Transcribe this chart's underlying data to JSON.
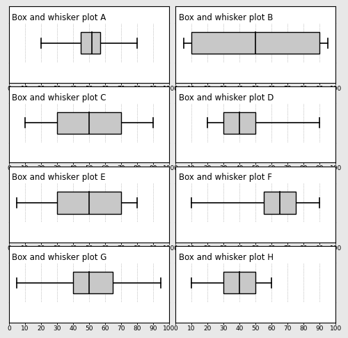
{
  "plots": [
    {
      "title": "Box and whisker plot A",
      "whisker_min": 20,
      "Q1": 45,
      "median": 52,
      "Q3": 57,
      "whisker_max": 80
    },
    {
      "title": "Box and whisker plot B",
      "whisker_min": 5,
      "Q1": 10,
      "median": 50,
      "Q3": 90,
      "whisker_max": 95
    },
    {
      "title": "Box and whisker plot C",
      "whisker_min": 10,
      "Q1": 30,
      "median": 50,
      "Q3": 70,
      "whisker_max": 90
    },
    {
      "title": "Box and whisker plot D",
      "whisker_min": 20,
      "Q1": 30,
      "median": 40,
      "Q3": 50,
      "whisker_max": 90
    },
    {
      "title": "Box and whisker plot E",
      "whisker_min": 5,
      "Q1": 30,
      "median": 50,
      "Q3": 70,
      "whisker_max": 80
    },
    {
      "title": "Box and whisker plot F",
      "whisker_min": 10,
      "Q1": 55,
      "median": 65,
      "Q3": 75,
      "whisker_max": 90
    },
    {
      "title": "Box and whisker plot G",
      "whisker_min": 5,
      "Q1": 40,
      "median": 50,
      "Q3": 65,
      "whisker_max": 95
    },
    {
      "title": "Box and whisker plot H",
      "whisker_min": 10,
      "Q1": 30,
      "median": 40,
      "Q3": 50,
      "whisker_max": 60
    }
  ],
  "xmin": 0,
  "xmax": 100,
  "xticks": [
    0,
    10,
    20,
    30,
    40,
    50,
    60,
    70,
    80,
    90,
    100
  ],
  "box_color": "#c8c8c8",
  "box_edgecolor": "#000000",
  "whisker_color": "#000000",
  "median_color": "#000000",
  "title_fontsize": 8.5,
  "tick_fontsize": 6.5,
  "grid_color": "#888888",
  "background_color": "#ffffff"
}
